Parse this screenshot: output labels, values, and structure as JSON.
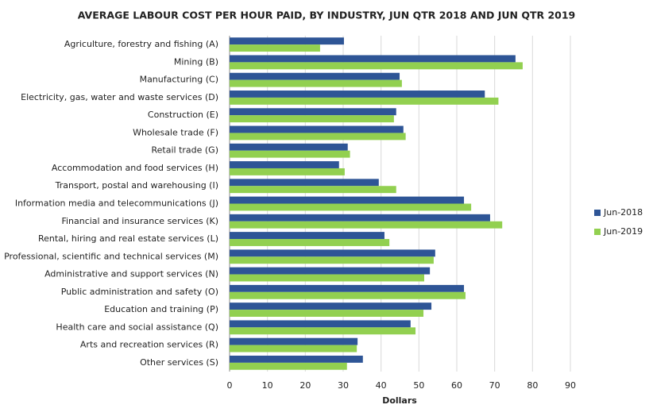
{
  "chart_data": {
    "type": "barh",
    "title": "AVERAGE LABOUR COST PER HOUR PAID, BY INDUSTRY, JUN QTR 2018 AND JUN QTR 2019",
    "xlabel": "Dollars",
    "categories": [
      "Agriculture, forestry and fishing (A)",
      "Mining (B)",
      "Manufacturing (C)",
      "Electricity, gas, water and waste services (D)",
      "Construction (E)",
      "Wholesale trade (F)",
      "Retail trade (G)",
      "Accommodation and food services (H)",
      "Transport, postal and warehousing (I)",
      "Information media and telecommunications (J)",
      "Financial and insurance services (K)",
      "Rental, hiring and real estate services (L)",
      "Professional, scientific and technical services (M)",
      "Administrative and support services (N)",
      "Public administration and safety (O)",
      "Education and training (P)",
      "Health care and social assistance (Q)",
      "Arts and recreation services (R)",
      "Other services (S)"
    ],
    "series": [
      {
        "name": "Jun-2018",
        "color": "#2e5596",
        "values": [
          30.2,
          75.5,
          44.9,
          67.4,
          44.0,
          45.9,
          31.2,
          28.9,
          39.4,
          61.9,
          68.8,
          40.9,
          54.3,
          52.9,
          61.9,
          53.3,
          47.8,
          33.8,
          35.2
        ]
      },
      {
        "name": "Jun-2019",
        "color": "#92d050",
        "values": [
          23.9,
          77.4,
          45.5,
          71.0,
          43.4,
          46.5,
          31.8,
          30.4,
          44.0,
          63.8,
          72.0,
          42.2,
          53.9,
          51.4,
          62.3,
          51.2,
          49.1,
          33.6,
          31.0
        ]
      }
    ],
    "xlim": [
      0,
      90
    ],
    "xticks": [
      0,
      10,
      20,
      30,
      40,
      50,
      60,
      70,
      80,
      90
    ],
    "grid": true,
    "legend": "right"
  }
}
